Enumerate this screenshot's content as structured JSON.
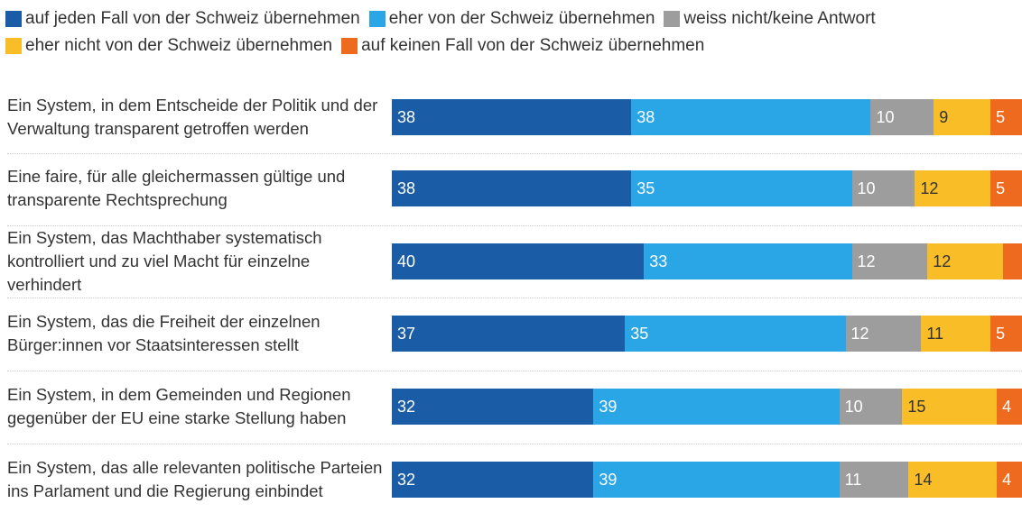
{
  "chart_data": {
    "type": "stacked-bar-horizontal",
    "categories": [
      "Ein System, in dem Entscheide der Politik und der Verwaltung transparent getroffen werden",
      "Eine faire, für alle gleichermassen gültige und transparente Rechtsprechung",
      "Ein System, das Machthaber systematisch kontrolliert und zu viel Macht für einzelne verhindert",
      "Ein System, das die Freiheit der einzelnen Bürger:innen vor Staatsinteressen stellt",
      "Ein System, in dem Gemeinden und Regionen gegenüber der EU eine starke Stellung haben",
      "Ein System, das alle relevanten politische Parteien ins Parlament und die Regierung einbindet"
    ],
    "series": [
      {
        "name": "auf jeden Fall von der Schweiz übernehmen",
        "color": "#1a5ca6",
        "values": [
          38,
          38,
          40,
          37,
          32,
          32
        ]
      },
      {
        "name": "eher von der Schweiz übernehmen",
        "color": "#2aa6e6",
        "values": [
          38,
          35,
          33,
          35,
          39,
          39
        ]
      },
      {
        "name": "weiss nicht/keine Antwort",
        "color": "#9d9d9d",
        "values": [
          10,
          10,
          12,
          12,
          10,
          11
        ]
      },
      {
        "name": "eher nicht von der Schweiz übernehmen",
        "color": "#f8bd27",
        "values": [
          9,
          12,
          12,
          11,
          15,
          14
        ]
      },
      {
        "name": "auf keinen Fall von der Schweiz übernehmen",
        "color": "#ee6a1e",
        "values": [
          5,
          5,
          3,
          5,
          4,
          4
        ]
      }
    ],
    "xlim": [
      0,
      100
    ]
  }
}
